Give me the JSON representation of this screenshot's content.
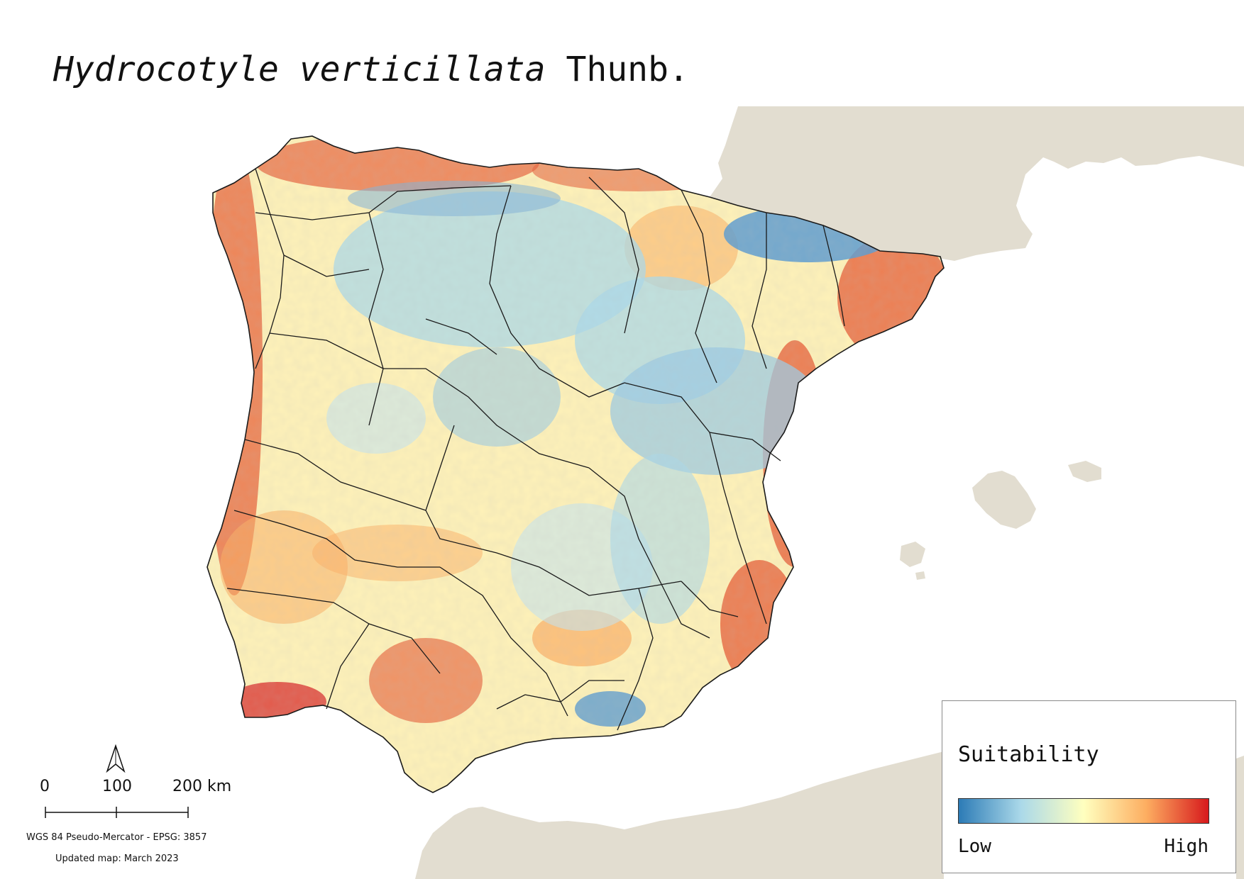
{
  "map": {
    "title_species": "Hydrocotyle verticillata",
    "title_author": "Thunb.",
    "legend": {
      "title": "Suitability",
      "low_label": "Low",
      "high_label": "High",
      "ramp_colors": [
        "#2c7bb6",
        "#abd9e9",
        "#ffffbf",
        "#fdae61",
        "#d7191c"
      ]
    },
    "scale_bar": {
      "labels": [
        "0",
        "100",
        "200 km"
      ]
    },
    "crs_text": "WGS 84 Pseudo-Mercator  - EPSG: 3857",
    "updated_text": "Updated map: March 2023",
    "colors": {
      "background_land": "#e2ddd0",
      "sea": "#ffffff",
      "boundaries": "#1a1a1a"
    }
  }
}
